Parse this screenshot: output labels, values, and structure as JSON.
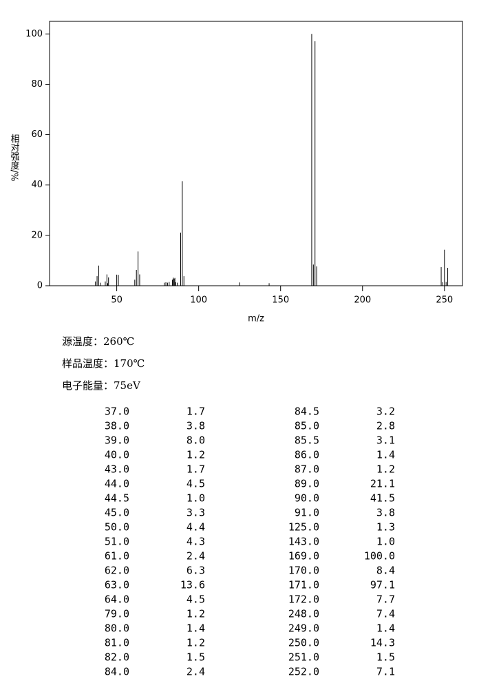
{
  "chart_data": {
    "type": "stem",
    "x_label": "m/z",
    "y_label": "相对强度/%",
    "x": [
      37,
      38,
      39,
      40,
      43,
      44,
      44.5,
      45,
      50,
      51,
      61,
      62,
      63,
      64,
      79,
      80,
      81,
      82,
      84,
      84.5,
      85,
      85.5,
      86,
      87,
      89,
      90,
      91,
      125,
      143,
      169,
      170,
      171,
      172,
      248,
      249,
      250,
      251,
      252
    ],
    "x_labels": [
      "37.0",
      "38.0",
      "39.0",
      "40.0",
      "43.0",
      "44.0",
      "44.5",
      "45.0",
      "50.0",
      "51.0",
      "61.0",
      "62.0",
      "63.0",
      "64.0",
      "79.0",
      "80.0",
      "81.0",
      "82.0",
      "84.0",
      "84.5",
      "85.0",
      "85.5",
      "86.0",
      "87.0",
      "89.0",
      "90.0",
      "91.0",
      "125.0",
      "143.0",
      "169.0",
      "170.0",
      "171.0",
      "172.0",
      "248.0",
      "249.0",
      "250.0",
      "251.0",
      "252.0"
    ],
    "values": [
      1.7,
      3.8,
      8.0,
      1.2,
      1.7,
      4.5,
      1.0,
      3.3,
      4.4,
      4.3,
      2.4,
      6.3,
      13.6,
      4.5,
      1.2,
      1.4,
      1.2,
      1.5,
      2.4,
      3.2,
      2.8,
      3.1,
      1.4,
      1.2,
      21.1,
      41.5,
      3.8,
      1.3,
      1.0,
      100.0,
      8.4,
      97.1,
      7.7,
      7.4,
      1.4,
      14.3,
      1.5,
      7.1
    ],
    "value_labels": [
      "1.7",
      "3.8",
      "8.0",
      "1.2",
      "1.7",
      "4.5",
      "1.0",
      "3.3",
      "4.4",
      "4.3",
      "2.4",
      "6.3",
      "13.6",
      "4.5",
      "1.2",
      "1.4",
      "1.2",
      "1.5",
      "2.4",
      "3.2",
      "2.8",
      "3.1",
      "1.4",
      "1.2",
      "21.1",
      "41.5",
      "3.8",
      "1.3",
      "1.0",
      "100.0",
      "8.4",
      "97.1",
      "7.7",
      "7.4",
      "1.4",
      "14.3",
      "1.5",
      "7.1"
    ],
    "color": "#000000",
    "xlim": [
      9,
      261
    ],
    "xticks": [
      50,
      100,
      150,
      200,
      250
    ],
    "ylim": [
      0,
      105
    ],
    "yticks": [
      0,
      20,
      40,
      60,
      80,
      100
    ]
  },
  "conditions": [
    "源温度：260℃",
    "样品温度：170℃",
    "电子能量：75eV"
  ]
}
